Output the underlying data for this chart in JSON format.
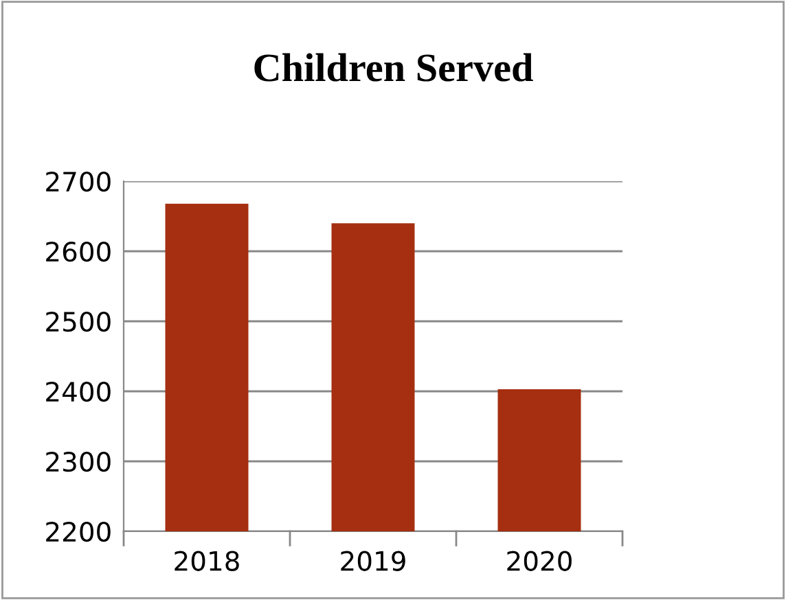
{
  "chart_data": {
    "type": "bar",
    "title": "Children Served",
    "categories": [
      "2018",
      "2019",
      "2020"
    ],
    "values": [
      2668,
      2640,
      2403
    ],
    "color": "#a52f10",
    "ylim": [
      2200,
      2700
    ],
    "yticks": [
      2200,
      2300,
      2400,
      2500,
      2600,
      2700
    ],
    "grid": "y",
    "legend": false
  }
}
